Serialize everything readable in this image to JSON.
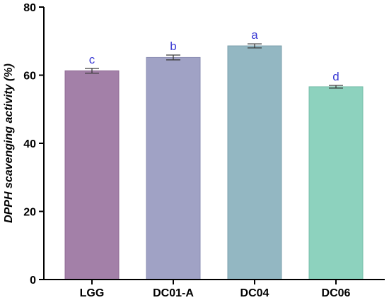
{
  "chart_data": {
    "type": "bar",
    "title": "",
    "xlabel": "",
    "ylabel": "DPPH scavenging activity (%)",
    "ylim": [
      0,
      80
    ],
    "yticks": [
      0,
      20,
      40,
      60,
      80
    ],
    "grid": false,
    "legend": "none",
    "categories": [
      "LGG",
      "DC01-A",
      "DC04",
      "DC06"
    ],
    "values": [
      61.3,
      65.2,
      68.6,
      56.6
    ],
    "errors": [
      0.7,
      0.7,
      0.6,
      0.4
    ],
    "significance_labels": [
      "c",
      "b",
      "a",
      "d"
    ],
    "bar_colors": [
      "#a380a8",
      "#a0a2c5",
      "#93b7c2",
      "#8dd2be"
    ],
    "bar_edge_colors": [
      "#8f6a94",
      "#8a8cb2",
      "#7ea2ad",
      "#77bea9"
    ],
    "label_color": "#3a3ad4"
  }
}
